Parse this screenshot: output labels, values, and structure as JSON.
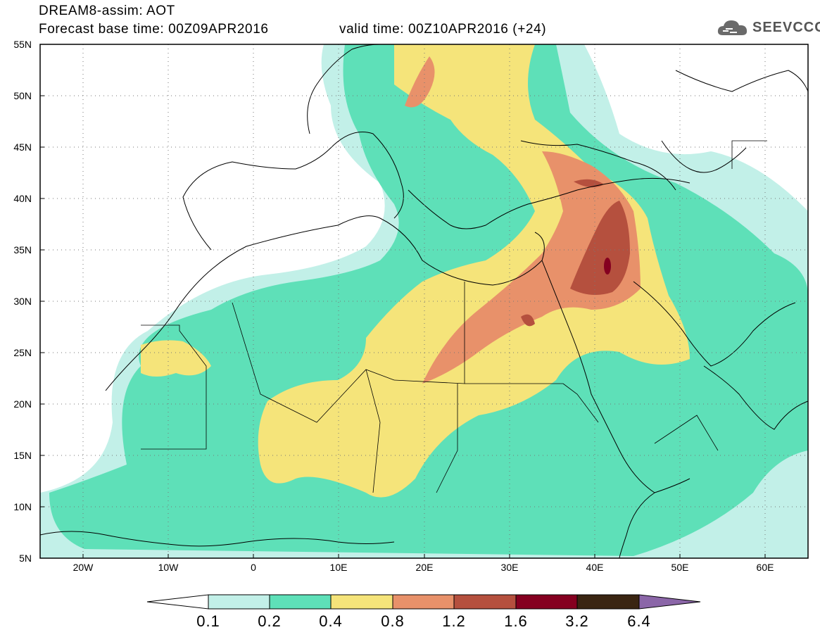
{
  "title": {
    "line1": "DREAM8-assim: AOT",
    "line2": "Forecast base time: 00Z09APR2016",
    "valid": "valid time: 00Z10APR2016 (+24)"
  },
  "logo": {
    "text": "SEEVCCC",
    "icon": "cloud-icon"
  },
  "map": {
    "projection": "lat-lon",
    "lon_range": [
      -25,
      65
    ],
    "lat_range": [
      5,
      55
    ],
    "grid": "dotted",
    "lat_labels": [
      "55N",
      "50N",
      "45N",
      "40N",
      "35N",
      "30N",
      "25N",
      "20N",
      "15N",
      "10N",
      "5N"
    ],
    "lon_labels": [
      "20W",
      "10W",
      "0",
      "10E",
      "20E",
      "30E",
      "40E",
      "50E",
      "60E"
    ]
  },
  "colorbar": {
    "labels": [
      "0.1",
      "0.2",
      "0.4",
      "0.8",
      "1.2",
      "1.6",
      "3.2",
      "6.4"
    ],
    "colors": [
      "#ffffff",
      "#c2f0e8",
      "#5ee0b8",
      "#f5e47a",
      "#e8916a",
      "#b5503e",
      "#850020",
      "#3a2512",
      "#8b66a8"
    ]
  }
}
